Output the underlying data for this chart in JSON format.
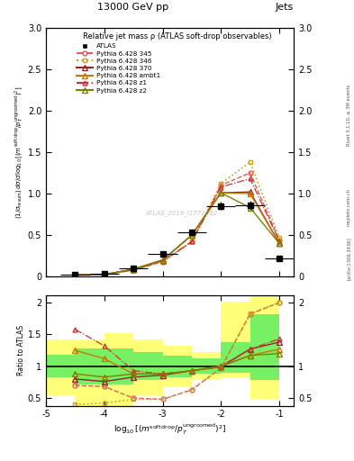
{
  "title_top": "13000 GeV pp",
  "title_right": "Jets",
  "plot_title": "Relative jet mass ρ (ATLAS soft-drop observables)",
  "watermark": "ATLAS_2019_I1772062",
  "rivet_label": "Rivet 3.1.10, ≥ 3M events",
  "arxiv_label": "[arXiv:1306.3436]",
  "mcplots_label": "mcplots.cern.ch",
  "x_values": [
    -4.5,
    -4.0,
    -3.5,
    -3.0,
    -2.5,
    -2.0,
    -1.5,
    -1.0
  ],
  "atlas_y": [
    0.02,
    0.03,
    0.1,
    0.27,
    0.53,
    0.85,
    0.86,
    0.22
  ],
  "atlas_xe": [
    0.25,
    0.25,
    0.25,
    0.25,
    0.25,
    0.25,
    0.25,
    0.25
  ],
  "atlas_ye": [
    0.005,
    0.005,
    0.015,
    0.025,
    0.04,
    0.05,
    0.05,
    0.025
  ],
  "p345_y": [
    0.02,
    0.025,
    0.08,
    0.18,
    0.42,
    1.1,
    1.25,
    0.44
  ],
  "p346_y": [
    0.02,
    0.025,
    0.08,
    0.18,
    0.42,
    1.12,
    1.38,
    0.47
  ],
  "p370_y": [
    0.02,
    0.025,
    0.09,
    0.2,
    0.5,
    1.01,
    1.02,
    0.4
  ],
  "pambt1_y": [
    0.02,
    0.025,
    0.09,
    0.2,
    0.5,
    1.01,
    1.0,
    0.4
  ],
  "pz1_y": [
    0.02,
    0.025,
    0.08,
    0.19,
    0.42,
    1.08,
    1.18,
    0.43
  ],
  "pz2_y": [
    0.02,
    0.025,
    0.09,
    0.2,
    0.5,
    1.01,
    0.83,
    0.4
  ],
  "color_345": "#e05a5a",
  "color_346": "#c8a020",
  "color_370": "#9a2030",
  "color_ambt1": "#c87800",
  "color_z1": "#cc3030",
  "color_z2": "#808000",
  "atlas_color": "#000000",
  "ratio_345_y": [
    0.7,
    0.68,
    0.5,
    0.48,
    0.63,
    0.97,
    1.82,
    2.0
  ],
  "ratio_346_y": [
    0.4,
    0.42,
    0.48,
    0.48,
    0.63,
    0.98,
    1.83,
    2.0
  ],
  "ratio_370_y": [
    0.8,
    0.76,
    0.83,
    0.86,
    0.93,
    0.99,
    1.27,
    1.38
  ],
  "ratio_ambt1_y": [
    1.25,
    1.12,
    0.88,
    0.88,
    0.93,
    1.0,
    1.17,
    1.27
  ],
  "ratio_z1_y": [
    1.58,
    1.32,
    0.93,
    0.88,
    0.93,
    1.0,
    1.27,
    1.43
  ],
  "ratio_z2_y": [
    0.88,
    0.83,
    0.88,
    0.88,
    0.93,
    1.0,
    1.17,
    1.2
  ],
  "band_x_edges": [
    -5.0,
    -4.5,
    -4.0,
    -3.5,
    -3.0,
    -2.5,
    -2.0,
    -1.5,
    -1.0
  ],
  "band_yellow_lo": [
    0.55,
    0.38,
    0.38,
    0.55,
    0.68,
    0.78,
    0.82,
    0.48
  ],
  "band_yellow_hi": [
    1.42,
    1.42,
    1.52,
    1.42,
    1.32,
    1.22,
    2.02,
    2.12
  ],
  "band_green_lo": [
    0.82,
    0.72,
    0.72,
    0.78,
    0.83,
    0.88,
    0.9,
    0.78
  ],
  "band_green_hi": [
    1.18,
    1.28,
    1.28,
    1.22,
    1.17,
    1.12,
    1.38,
    1.82
  ],
  "main_ylim": [
    0,
    3.0
  ],
  "main_yticks": [
    0,
    0.5,
    1.0,
    1.5,
    2.0,
    2.5,
    3.0
  ],
  "ratio_ylim": [
    0.38,
    2.12
  ],
  "ratio_yticks": [
    0.5,
    1.0,
    1.5,
    2.0
  ],
  "xlim": [
    -5.0,
    -0.75
  ],
  "xticks": [
    -5,
    -4,
    -3,
    -2,
    -1
  ]
}
